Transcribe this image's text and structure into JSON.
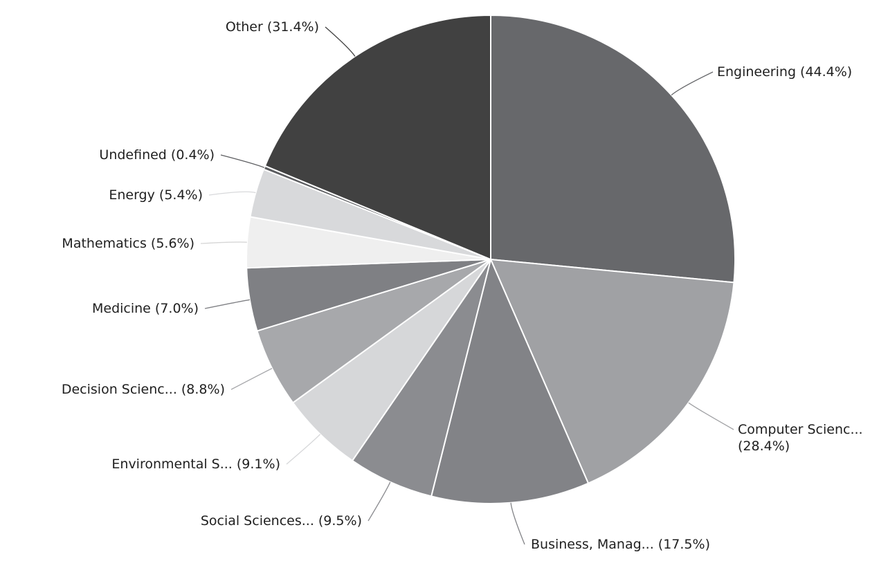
{
  "chart_data": {
    "type": "pie",
    "title": "",
    "slices": [
      {
        "label": "Engineering",
        "pct_label": "(44.4%)",
        "value": 44.4,
        "color": "#67686b"
      },
      {
        "label": "Computer Scienc...",
        "pct_label": "(28.4%)",
        "value": 28.4,
        "color": "#a0a1a4"
      },
      {
        "label": "Business, Manag...",
        "pct_label": "(17.5%)",
        "value": 17.5,
        "color": "#828387"
      },
      {
        "label": "Social Sciences...",
        "pct_label": "(9.5%)",
        "value": 9.5,
        "color": "#8b8c90"
      },
      {
        "label": "Environmental S...",
        "pct_label": "(9.1%)",
        "value": 9.1,
        "color": "#d6d7d9"
      },
      {
        "label": "Decision Scienc...",
        "pct_label": "(8.8%)",
        "value": 8.8,
        "color": "#a7a8ab"
      },
      {
        "label": "Medicine",
        "pct_label": "(7.0%)",
        "value": 7.0,
        "color": "#7f8084"
      },
      {
        "label": "Mathematics",
        "pct_label": "(5.6%)",
        "value": 5.6,
        "color": "#efefef"
      },
      {
        "label": "Energy",
        "pct_label": "(5.4%)",
        "value": 5.4,
        "color": "#d8d9db"
      },
      {
        "label": "Undefined",
        "pct_label": "(0.4%)",
        "value": 0.4,
        "color": "#5c5d60"
      },
      {
        "label": "Other",
        "pct_label": "(31.4%)",
        "value": 31.4,
        "color": "#414141"
      }
    ]
  }
}
